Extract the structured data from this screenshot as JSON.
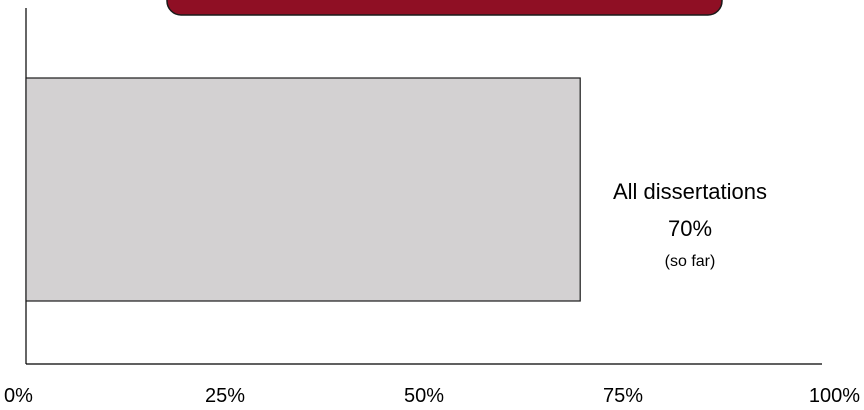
{
  "colors": {
    "banner_fill": "#8f0f24",
    "banner_stroke": "#1a1a1a",
    "bar_fill": "#d3d1d2",
    "bar_stroke": "#1a1a1a",
    "axis": "#000000"
  },
  "chart_data": {
    "type": "bar",
    "orientation": "horizontal",
    "categories": [
      "All dissertations"
    ],
    "values": [
      70
    ],
    "value_labels": [
      "70%"
    ],
    "notes": [
      "(so far)"
    ],
    "xlim": [
      0,
      100
    ],
    "xticks": [
      0,
      25,
      50,
      75,
      100
    ],
    "xtick_labels": [
      "0%",
      "25%",
      "50%",
      "75%",
      "100%"
    ],
    "grid": false,
    "legend": "none"
  }
}
